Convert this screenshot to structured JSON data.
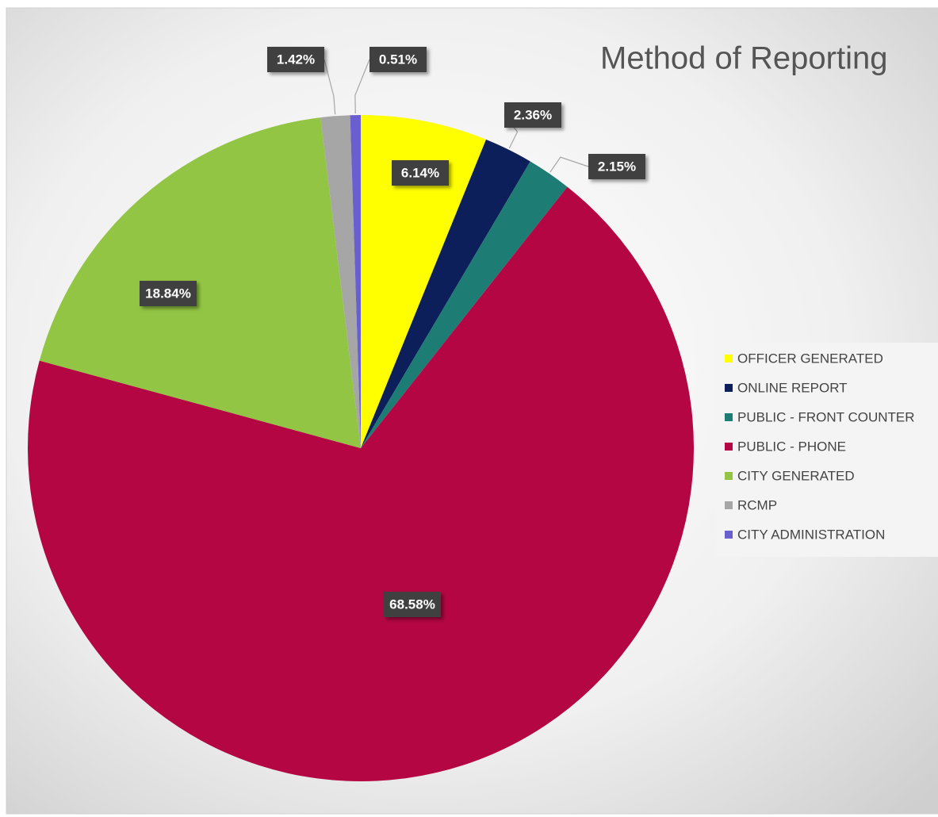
{
  "chart_data": {
    "type": "pie",
    "title": "Method of Reporting",
    "categories": [
      "OFFICER GENERATED",
      "ONLINE REPORT",
      "PUBLIC - FRONT COUNTER",
      "PUBLIC - PHONE",
      "CITY GENERATED",
      "RCMP",
      "CITY ADMINISTRATION"
    ],
    "values": [
      6.14,
      2.36,
      2.15,
      68.58,
      18.84,
      1.42,
      0.51
    ],
    "value_labels": [
      "6.14%",
      "2.36%",
      "2.15%",
      "68.58%",
      "18.84%",
      "1.42%",
      "0.51%"
    ],
    "colors": [
      "#ffff00",
      "#0c1f5a",
      "#1d7d74",
      "#b30642",
      "#92c544",
      "#a6a6a6",
      "#6a5fcf"
    ],
    "legend": "right"
  }
}
